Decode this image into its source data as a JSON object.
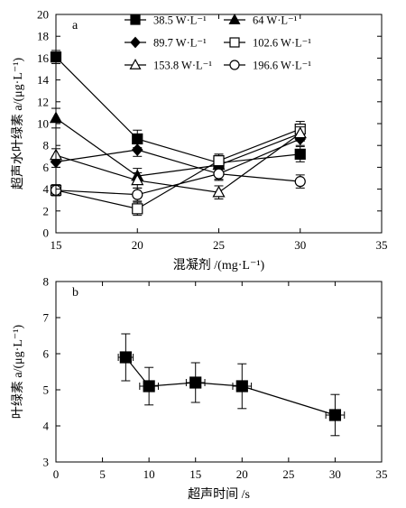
{
  "chart_data": [
    {
      "panel_label": "a",
      "type": "line",
      "xlabel": "混凝剂 /(mg·L⁻¹)",
      "ylabel": "超声水叶绿素 a/(μg·L⁻¹)",
      "xlim": [
        15,
        35
      ],
      "ylim": [
        0,
        20
      ],
      "xticks": [
        "15",
        "20",
        "25",
        "30",
        "35"
      ],
      "yticks": [
        "0",
        "2",
        "4",
        "6",
        "8",
        "10",
        "12",
        "14",
        "16",
        "18",
        "20"
      ],
      "legend_position": "top-right",
      "x": [
        15,
        20,
        25,
        30
      ],
      "series": [
        {
          "name": "38.5 W·L⁻¹",
          "marker": "filled-square",
          "values": [
            16.1,
            8.6,
            6.4,
            7.2
          ],
          "errors": [
            0.6,
            0.8,
            0.8,
            0.7
          ]
        },
        {
          "name": "64 W·L⁻¹",
          "marker": "filled-triangle",
          "values": [
            10.5,
            5.2,
            6.2,
            9.1
          ],
          "errors": [
            0.9,
            0.7,
            0.7,
            0.7
          ]
        },
        {
          "name": "89.7 W·L⁻¹",
          "marker": "filled-diamond",
          "values": [
            6.5,
            7.6,
            5.4,
            8.6
          ],
          "errors": [
            0.5,
            0.6,
            0.6,
            0.6
          ]
        },
        {
          "name": "102.6 W·L⁻¹",
          "marker": "open-square",
          "values": [
            3.9,
            2.2,
            6.6,
            9.5
          ],
          "errors": [
            0.5,
            0.6,
            0.6,
            0.7
          ]
        },
        {
          "name": "153.8 W·L⁻¹",
          "marker": "open-triangle",
          "values": [
            7.1,
            4.8,
            3.7,
            9.1
          ],
          "errors": [
            0.6,
            0.7,
            0.6,
            0.6
          ]
        },
        {
          "name": "196.6 W·L⁻¹",
          "marker": "open-circle",
          "values": [
            3.9,
            3.5,
            5.4,
            4.7
          ],
          "errors": [
            0.5,
            0.6,
            0.5,
            0.6
          ]
        }
      ]
    },
    {
      "panel_label": "b",
      "type": "line",
      "xlabel": "超声时间 /s",
      "ylabel": "叶绿素 a/(μg·L⁻¹)",
      "xlim": [
        0,
        35
      ],
      "ylim": [
        3,
        8
      ],
      "xticks": [
        "0",
        "5",
        "10",
        "15",
        "20",
        "25",
        "30",
        "35"
      ],
      "yticks": [
        "3",
        "4",
        "5",
        "6",
        "7",
        "8"
      ],
      "series": [
        {
          "marker": "filled-square",
          "x": [
            7.5,
            10,
            15,
            20,
            30
          ],
          "values": [
            5.9,
            5.1,
            5.2,
            5.1,
            4.3
          ],
          "yerr": [
            0.65,
            0.52,
            0.55,
            0.62,
            0.57
          ],
          "xerr": [
            0.8,
            1.0,
            1.0,
            1.0,
            1.0
          ]
        }
      ]
    }
  ]
}
